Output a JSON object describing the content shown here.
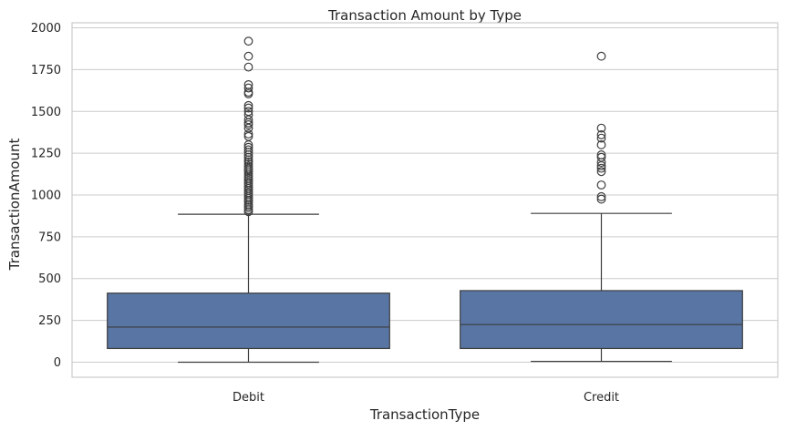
{
  "chart_data": {
    "type": "box",
    "title": "Transaction Amount by Type",
    "xlabel": "TransactionType",
    "ylabel": "TransactionAmount",
    "ylim": [
      -90,
      2030
    ],
    "yticks": [
      0,
      250,
      500,
      750,
      1000,
      1250,
      1500,
      1750,
      2000
    ],
    "grid": true,
    "box_color": "#5875a4",
    "edge_color": "#3d3d3d",
    "grid_color": "#cccccc",
    "categories": [
      "Debit",
      "Credit"
    ],
    "boxes": [
      {
        "name": "Debit",
        "whisker_low": 0,
        "q1": 82,
        "median": 210,
        "q3": 413,
        "whisker_high": 885,
        "outliers": [
          900,
          912,
          925,
          935,
          945,
          958,
          968,
          980,
          992,
          1005,
          1015,
          1028,
          1040,
          1052,
          1065,
          1075,
          1088,
          1100,
          1112,
          1125,
          1138,
          1150,
          1160,
          1172,
          1185,
          1198,
          1210,
          1225,
          1240,
          1255,
          1270,
          1285,
          1300,
          1350,
          1365,
          1400,
          1420,
          1432,
          1450,
          1480,
          1500,
          1520,
          1535,
          1605,
          1615,
          1640,
          1660,
          1765,
          1830,
          1920
        ]
      },
      {
        "name": "Credit",
        "whisker_low": 5,
        "q1": 82,
        "median": 225,
        "q3": 428,
        "whisker_high": 890,
        "outliers": [
          975,
          990,
          1060,
          1140,
          1160,
          1175,
          1195,
          1225,
          1240,
          1300,
          1340,
          1360,
          1400,
          1830
        ]
      }
    ]
  }
}
